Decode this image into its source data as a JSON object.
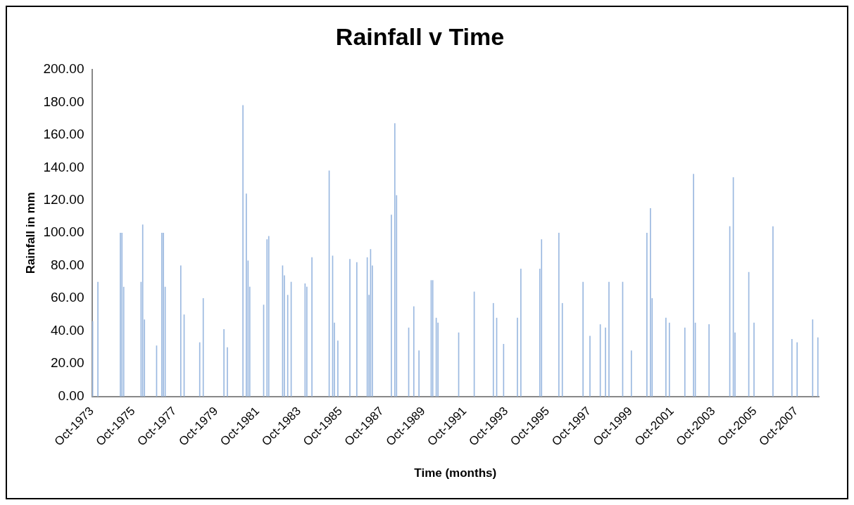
{
  "chart_data": {
    "type": "bar",
    "title": "Rainfall v Time",
    "xlabel": "Time (months)",
    "ylabel": "Rainfall in mm",
    "x": [
      "1973-10-15",
      "1974-01-15",
      "1975-02-15",
      "1975-03-15",
      "1975-04-15",
      "1976-02-15",
      "1976-03-15",
      "1976-04-15",
      "1976-11-15",
      "1977-02-15",
      "1977-03-15",
      "1977-04-15",
      "1978-01-15",
      "1978-03-15",
      "1978-12-15",
      "1979-02-15",
      "1980-02-15",
      "1980-04-15",
      "1981-01-15",
      "1981-03-15",
      "1981-04-15",
      "1981-05-15",
      "1982-01-15",
      "1982-03-15",
      "1982-04-15",
      "1982-12-15",
      "1983-01-15",
      "1983-03-15",
      "1983-05-15",
      "1984-01-15",
      "1984-02-15",
      "1984-05-15",
      "1985-03-15",
      "1985-05-15",
      "1985-06-15",
      "1985-08-15",
      "1986-03-15",
      "1986-07-15",
      "1987-01-15",
      "1987-02-15",
      "1987-03-15",
      "1987-04-15",
      "1988-03-15",
      "1988-05-15",
      "1988-06-15",
      "1989-01-15",
      "1989-04-15",
      "1989-07-15",
      "1990-02-15",
      "1990-03-15",
      "1990-05-15",
      "1990-06-15",
      "1991-06-15",
      "1992-03-15",
      "1993-02-15",
      "1993-04-15",
      "1993-08-15",
      "1994-04-15",
      "1994-06-15",
      "1995-05-15",
      "1995-06-15",
      "1996-04-15",
      "1996-06-15",
      "1997-06-15",
      "1997-10-15",
      "1998-04-15",
      "1998-07-15",
      "1998-09-15",
      "1999-05-15",
      "1999-10-15",
      "2000-07-15",
      "2000-09-15",
      "2000-10-15",
      "2001-06-15",
      "2001-08-15",
      "2002-05-15",
      "2002-10-15",
      "2002-11-15",
      "2003-07-15",
      "2004-07-15",
      "2004-09-15",
      "2004-10-15",
      "2005-06-15",
      "2005-09-15",
      "2006-08-15",
      "2007-07-15",
      "2007-10-15",
      "2008-07-15",
      "2008-10-15"
    ],
    "values": [
      46,
      70,
      100,
      100,
      67,
      70,
      105,
      47,
      31,
      100,
      100,
      67,
      80,
      50,
      33,
      60,
      41,
      30,
      178,
      124,
      83,
      67,
      56,
      96,
      98,
      80,
      74,
      62,
      70,
      69,
      67,
      85,
      138,
      86,
      45,
      34,
      84,
      82,
      85,
      62,
      90,
      80,
      111,
      167,
      123,
      42,
      55,
      28,
      71,
      71,
      48,
      45,
      39,
      64,
      57,
      48,
      32,
      48,
      78,
      78,
      96,
      100,
      57,
      70,
      37,
      44,
      42,
      70,
      70,
      28,
      100,
      115,
      60,
      48,
      45,
      42,
      136,
      45,
      44,
      104,
      134,
      39,
      76,
      45,
      104,
      35,
      33,
      47,
      36
    ],
    "color": "#9ab8e0",
    "xlim": [
      "1973-10-01",
      "2008-10-31"
    ],
    "xticks": [
      {
        "value": "1973-10-01",
        "label": "Oct-1973"
      },
      {
        "value": "1975-10-01",
        "label": "Oct-1975"
      },
      {
        "value": "1977-10-01",
        "label": "Oct-1977"
      },
      {
        "value": "1979-10-01",
        "label": "Oct-1979"
      },
      {
        "value": "1981-10-01",
        "label": "Oct-1981"
      },
      {
        "value": "1983-10-01",
        "label": "Oct-1983"
      },
      {
        "value": "1985-10-01",
        "label": "Oct-1985"
      },
      {
        "value": "1987-10-01",
        "label": "Oct-1987"
      },
      {
        "value": "1989-10-01",
        "label": "Oct-1989"
      },
      {
        "value": "1991-10-01",
        "label": "Oct-1991"
      },
      {
        "value": "1993-10-01",
        "label": "Oct-1993"
      },
      {
        "value": "1995-10-01",
        "label": "Oct-1995"
      },
      {
        "value": "1997-10-01",
        "label": "Oct-1997"
      },
      {
        "value": "1999-10-01",
        "label": "Oct-1999"
      },
      {
        "value": "2001-10-01",
        "label": "Oct-2001"
      },
      {
        "value": "2003-10-01",
        "label": "Oct-2003"
      },
      {
        "value": "2005-10-01",
        "label": "Oct-2005"
      },
      {
        "value": "2007-10-01",
        "label": "Oct-2007"
      }
    ],
    "ylim": [
      0,
      200
    ],
    "yticks": [
      {
        "value": 0,
        "label": "0.00"
      },
      {
        "value": 20,
        "label": "20.00"
      },
      {
        "value": 40,
        "label": "40.00"
      },
      {
        "value": 60,
        "label": "60.00"
      },
      {
        "value": 80,
        "label": "80.00"
      },
      {
        "value": 100,
        "label": "100.00"
      },
      {
        "value": 120,
        "label": "120.00"
      },
      {
        "value": 140,
        "label": "140.00"
      },
      {
        "value": 160,
        "label": "160.00"
      },
      {
        "value": 180,
        "label": "180.00"
      },
      {
        "value": 200,
        "label": "200.00"
      }
    ],
    "grid": false,
    "legend": false
  }
}
